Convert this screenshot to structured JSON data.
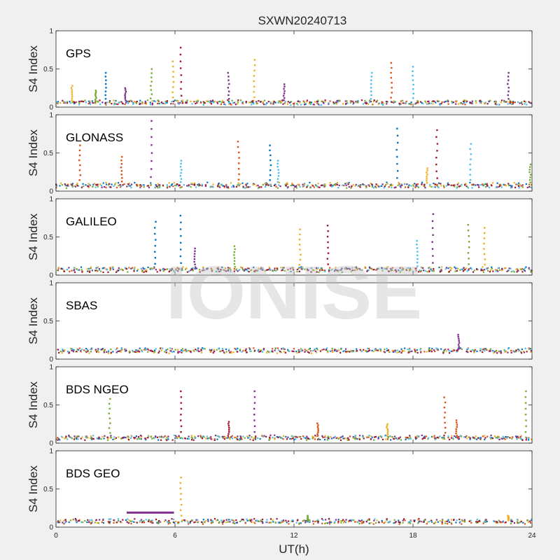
{
  "title": "SXWN20240713",
  "xlabel": "UT(h)",
  "watermark": "IONISE",
  "colors": [
    "#0072BD",
    "#D95319",
    "#EDB120",
    "#7E2F8E",
    "#77AC30",
    "#4DBEEE",
    "#A2142F"
  ],
  "chart_data": [
    {
      "type": "scatter",
      "panel_label": "GPS",
      "ylabel": "S4 Index",
      "xlim": [
        0,
        24
      ],
      "ylim": [
        0,
        1
      ],
      "xticks": [
        0,
        6,
        12,
        18,
        24
      ],
      "yticks": [
        0,
        0.5,
        1
      ],
      "baseline": 0.06,
      "spikes": [
        {
          "x": 0.8,
          "y": 0.28,
          "series": 2
        },
        {
          "x": 2.0,
          "y": 0.22,
          "series": 4
        },
        {
          "x": 2.5,
          "y": 0.45,
          "series": 0
        },
        {
          "x": 3.5,
          "y": 0.25,
          "series": 3
        },
        {
          "x": 4.8,
          "y": 0.5,
          "series": 4
        },
        {
          "x": 5.9,
          "y": 0.6,
          "series": 2
        },
        {
          "x": 6.3,
          "y": 0.78,
          "series": 6
        },
        {
          "x": 8.7,
          "y": 0.45,
          "series": 3
        },
        {
          "x": 10.0,
          "y": 0.62,
          "series": 2
        },
        {
          "x": 11.5,
          "y": 0.3,
          "series": 3
        },
        {
          "x": 15.9,
          "y": 0.45,
          "series": 5
        },
        {
          "x": 16.9,
          "y": 0.58,
          "series": 1
        },
        {
          "x": 18.0,
          "y": 0.53,
          "series": 5
        },
        {
          "x": 22.8,
          "y": 0.45,
          "series": 3
        }
      ]
    },
    {
      "type": "scatter",
      "panel_label": "GLONASS",
      "ylabel": "S4 Index",
      "xlim": [
        0,
        24
      ],
      "ylim": [
        0,
        1
      ],
      "xticks": [
        0,
        6,
        12,
        18,
        24
      ],
      "yticks": [
        0,
        0.5,
        1
      ],
      "baseline": 0.08,
      "spikes": [
        {
          "x": 1.2,
          "y": 0.6,
          "series": 1
        },
        {
          "x": 3.3,
          "y": 0.45,
          "series": 1
        },
        {
          "x": 4.8,
          "y": 0.92,
          "series": 3
        },
        {
          "x": 6.3,
          "y": 0.4,
          "series": 5
        },
        {
          "x": 9.2,
          "y": 0.65,
          "series": 1
        },
        {
          "x": 10.8,
          "y": 0.6,
          "series": 0
        },
        {
          "x": 11.2,
          "y": 0.4,
          "series": 5
        },
        {
          "x": 17.2,
          "y": 0.82,
          "series": 0
        },
        {
          "x": 19.2,
          "y": 0.8,
          "series": 6
        },
        {
          "x": 18.7,
          "y": 0.3,
          "series": 2
        },
        {
          "x": 20.9,
          "y": 0.62,
          "series": 5
        },
        {
          "x": 23.9,
          "y": 0.35,
          "series": 4
        }
      ]
    },
    {
      "type": "scatter",
      "panel_label": "GALILEO",
      "ylabel": "S4 Index",
      "xlim": [
        0,
        24
      ],
      "ylim": [
        0,
        1
      ],
      "xticks": [
        0,
        6,
        12,
        18,
        24
      ],
      "yticks": [
        0,
        0.5,
        1
      ],
      "baseline": 0.07,
      "spikes": [
        {
          "x": 5.0,
          "y": 0.7,
          "series": 0
        },
        {
          "x": 6.3,
          "y": 0.78,
          "series": 0
        },
        {
          "x": 7.0,
          "y": 0.35,
          "series": 3
        },
        {
          "x": 9.0,
          "y": 0.38,
          "series": 4
        },
        {
          "x": 12.3,
          "y": 0.6,
          "series": 2
        },
        {
          "x": 13.7,
          "y": 0.65,
          "series": 6
        },
        {
          "x": 18.2,
          "y": 0.45,
          "series": 5
        },
        {
          "x": 19.0,
          "y": 0.8,
          "series": 3
        },
        {
          "x": 21.6,
          "y": 0.62,
          "series": 2
        },
        {
          "x": 20.8,
          "y": 0.66,
          "series": 4
        }
      ]
    },
    {
      "type": "scatter",
      "panel_label": "SBAS",
      "ylabel": "S4 Index",
      "xlim": [
        0,
        24
      ],
      "ylim": [
        0,
        1
      ],
      "xticks": [
        0,
        6,
        12,
        18,
        24
      ],
      "yticks": [
        0,
        0.5,
        1
      ],
      "baseline": 0.11,
      "spikes": [
        {
          "x": 20.3,
          "y": 0.32,
          "series": 3
        }
      ]
    },
    {
      "type": "scatter",
      "panel_label": "BDS NGEO",
      "ylabel": "S4 Index",
      "xlim": [
        0,
        24
      ],
      "ylim": [
        0,
        1
      ],
      "xticks": [
        0,
        6,
        12,
        18,
        24
      ],
      "yticks": [
        0,
        0.5,
        1
      ],
      "baseline": 0.07,
      "spikes": [
        {
          "x": 2.7,
          "y": 0.58,
          "series": 4
        },
        {
          "x": 6.3,
          "y": 0.68,
          "series": 6
        },
        {
          "x": 8.7,
          "y": 0.28,
          "series": 6
        },
        {
          "x": 10.0,
          "y": 0.68,
          "series": 3
        },
        {
          "x": 13.2,
          "y": 0.26,
          "series": 1
        },
        {
          "x": 16.7,
          "y": 0.25,
          "series": 2
        },
        {
          "x": 19.6,
          "y": 0.6,
          "series": 1
        },
        {
          "x": 20.2,
          "y": 0.3,
          "series": 1
        },
        {
          "x": 23.7,
          "y": 0.68,
          "series": 4
        }
      ]
    },
    {
      "type": "scatter",
      "panel_label": "BDS GEO",
      "ylabel": "S4 Index",
      "xlim": [
        0,
        24
      ],
      "ylim": [
        0,
        1
      ],
      "xticks": [
        0,
        6,
        12,
        18,
        24
      ],
      "yticks": [
        0,
        0.5,
        1
      ],
      "baseline": 0.08,
      "segment": {
        "x_start": 3.6,
        "x_end": 5.9,
        "y": 0.19,
        "series": 3
      },
      "spikes": [
        {
          "x": 6.3,
          "y": 0.65,
          "series": 2
        },
        {
          "x": 12.7,
          "y": 0.15,
          "series": 4
        },
        {
          "x": 22.8,
          "y": 0.15,
          "series": 2
        }
      ]
    }
  ]
}
